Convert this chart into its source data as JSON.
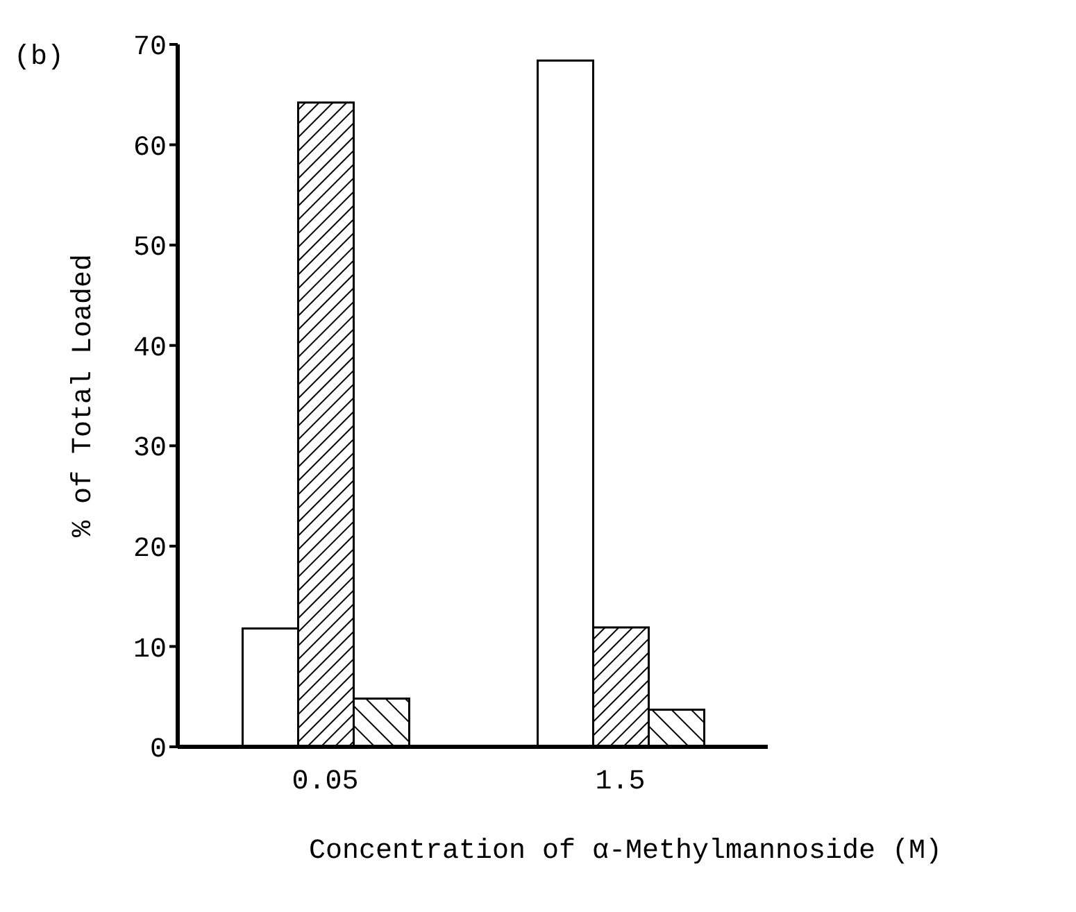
{
  "chart_data": {
    "type": "bar",
    "xlabel": "Concentration of α-Methylmannoside (M)",
    "ylabel": "% of Total Loaded",
    "annotations": [
      "(b)"
    ],
    "categories": [
      "0.05",
      "1.5"
    ],
    "series": [
      {
        "color": "#ffffff",
        "values": [
          11.8,
          68.4
        ]
      },
      {
        "color": "#000000",
        "values": [
          64.2,
          11.9
        ]
      },
      {
        "color": "#000000",
        "values": [
          4.8,
          3.7
        ]
      }
    ],
    "ylim": [
      0,
      70
    ],
    "yticks": [
      0,
      10,
      20,
      30,
      40,
      50,
      60,
      70
    ],
    "grid": false,
    "legend": false
  }
}
